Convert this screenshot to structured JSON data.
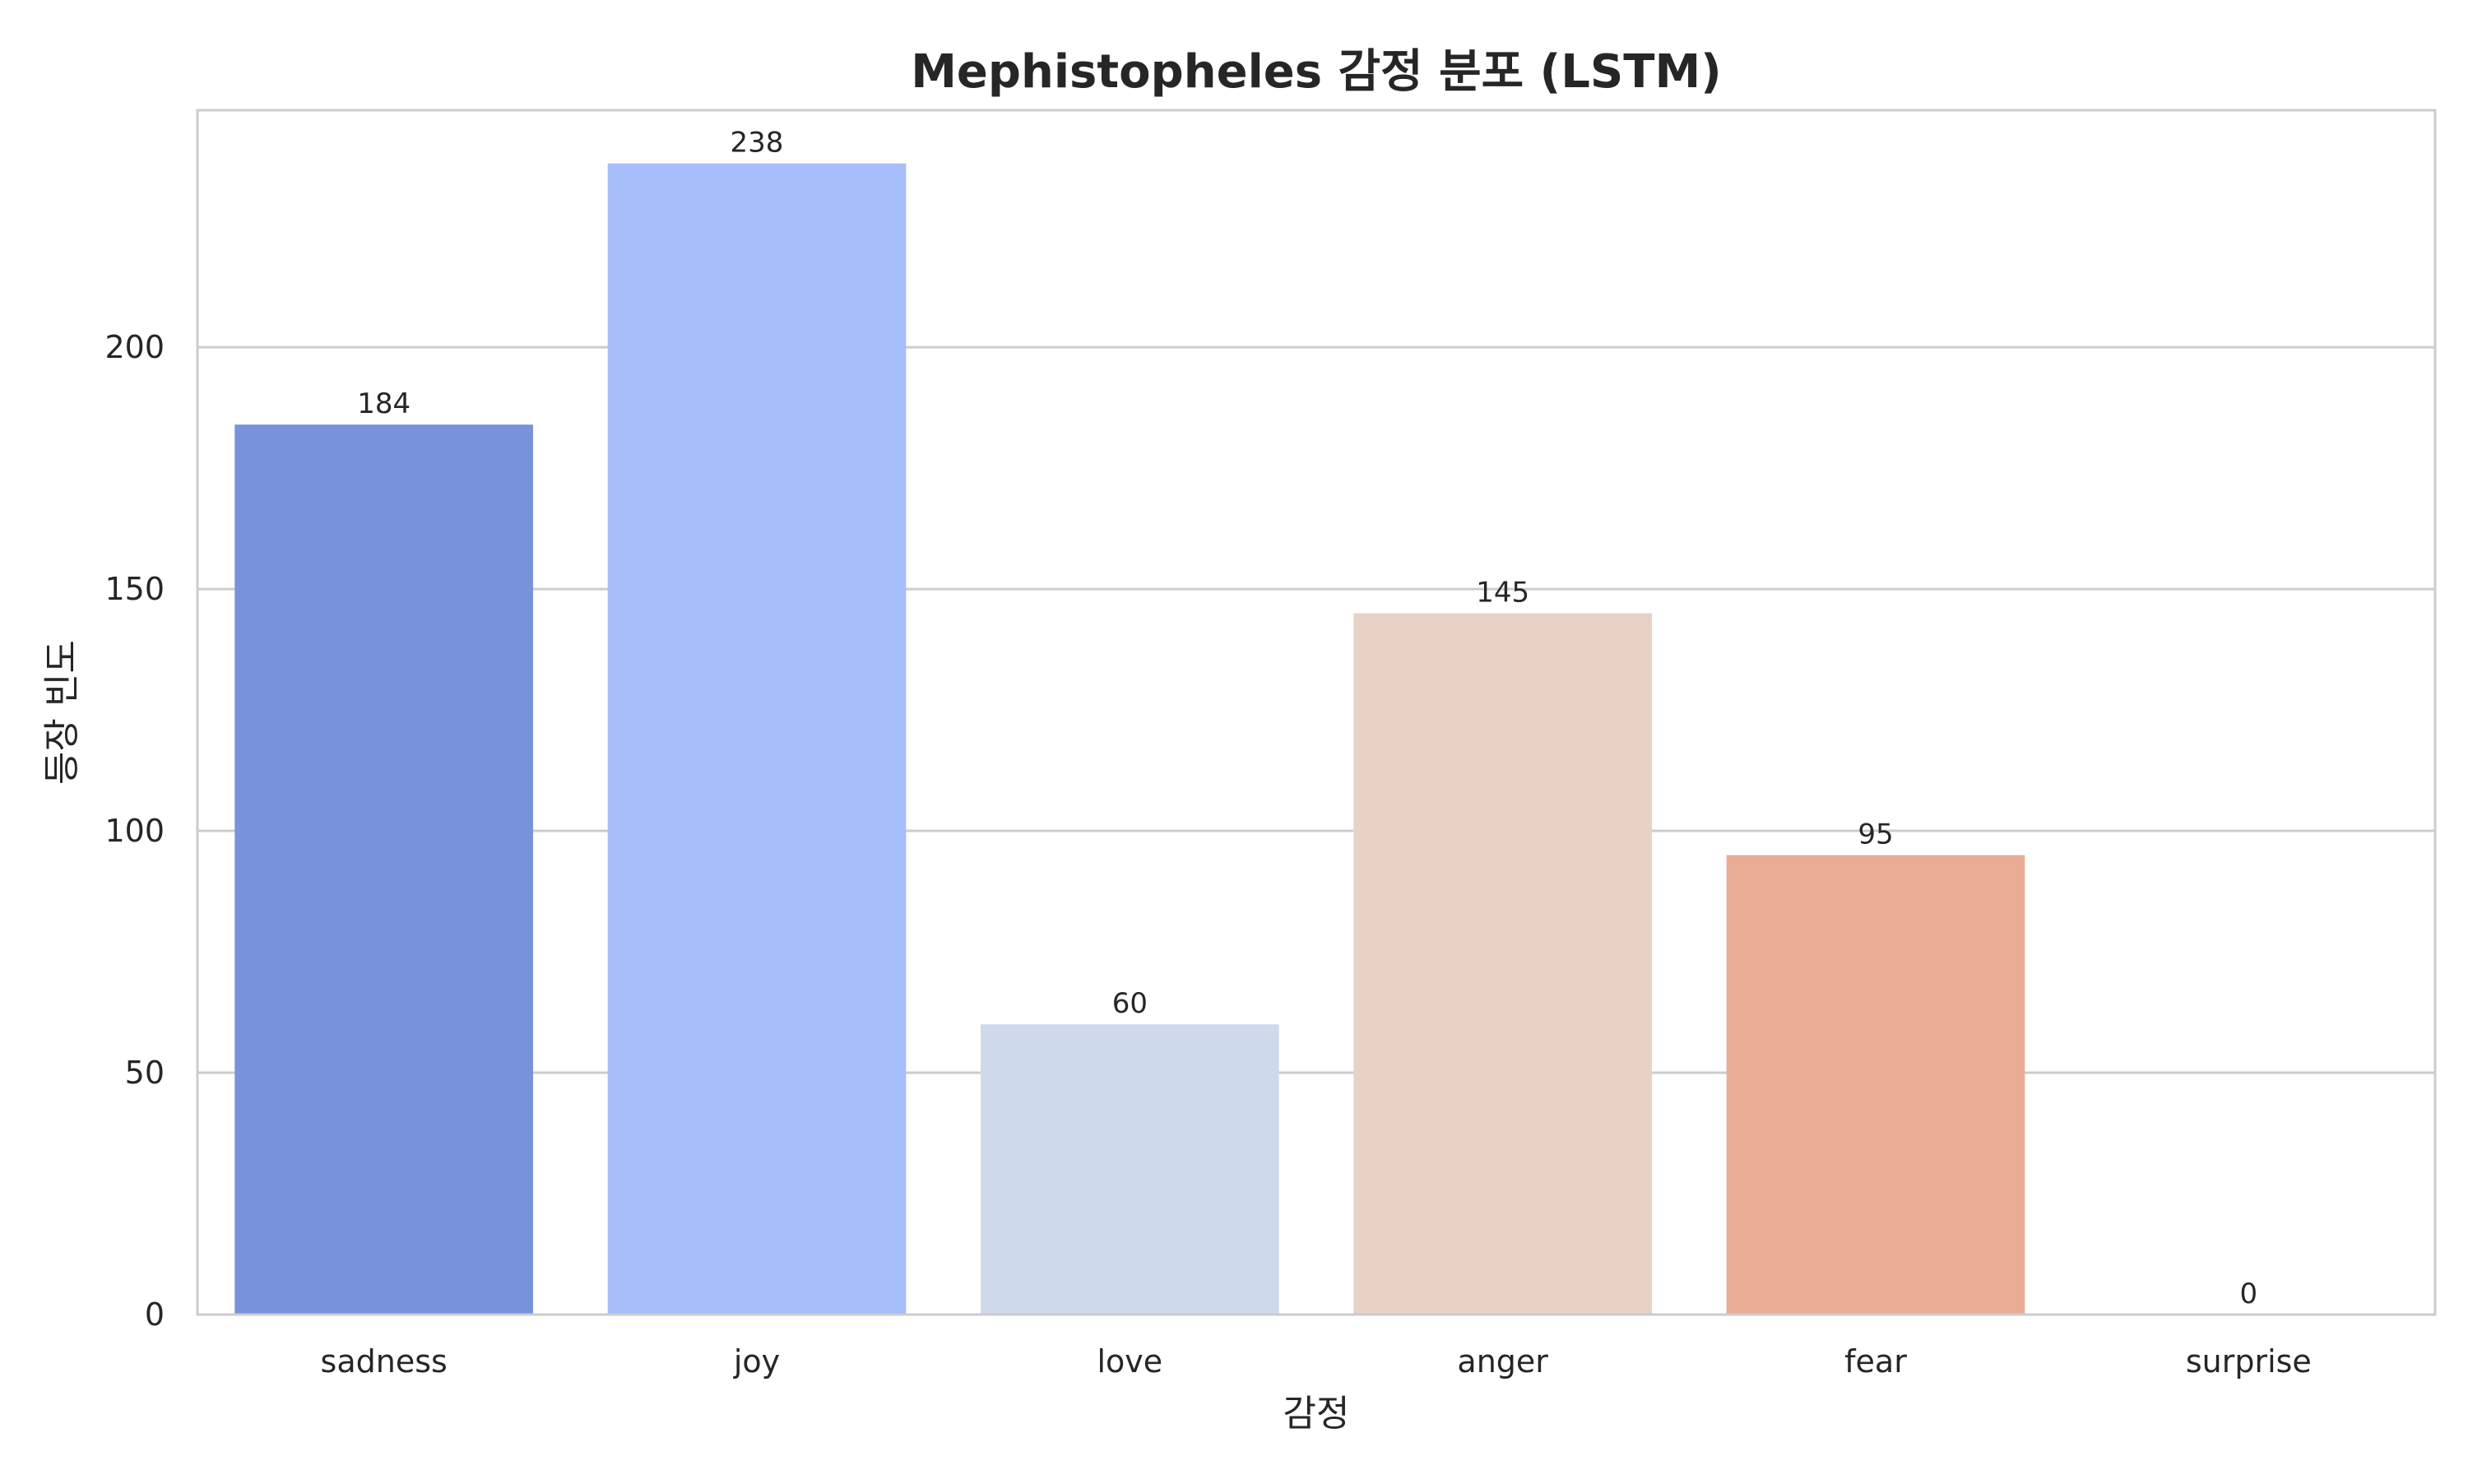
{
  "chart_data": {
    "type": "bar",
    "title": "Mephistopheles 감정 분포 (LSTM)",
    "xlabel": "감정",
    "ylabel": "등장 빈도",
    "categories": [
      "sadness",
      "joy",
      "love",
      "anger",
      "fear",
      "surprise"
    ],
    "values": [
      184,
      238,
      60,
      145,
      95,
      0
    ],
    "data_labels": [
      "184",
      "238",
      "60",
      "145",
      "95",
      "0"
    ],
    "colors": [
      "#7892dc",
      "#a6befa",
      "#cfd9ec",
      "#e8d1c6",
      "#e9ad95",
      "#e07b5b"
    ],
    "ylim": [
      0,
      249
    ],
    "yticks": [
      0,
      50,
      100,
      150,
      200
    ],
    "ytick_labels": [
      "0",
      "50",
      "100",
      "150",
      "200"
    ],
    "grid": true,
    "grid_axis": "y",
    "legend": "none"
  }
}
